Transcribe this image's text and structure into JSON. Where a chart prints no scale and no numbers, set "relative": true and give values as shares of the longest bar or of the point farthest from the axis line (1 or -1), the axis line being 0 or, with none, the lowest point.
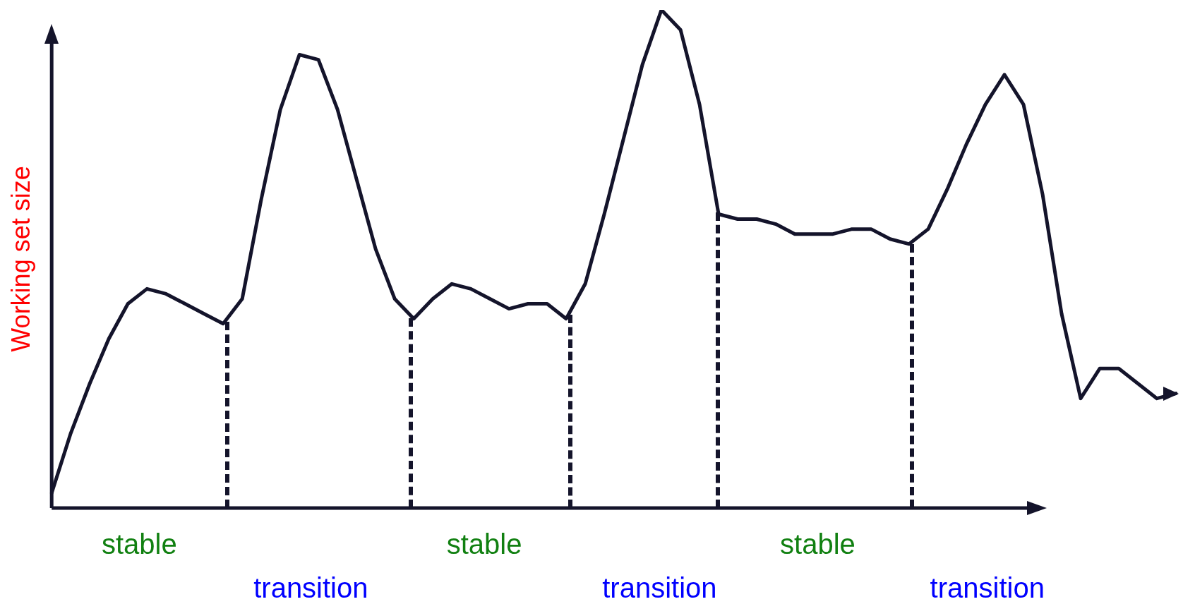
{
  "chart_data": {
    "type": "line",
    "relative": true,
    "ylabel": "Working set size",
    "line_style": "solid",
    "categories": [
      null,
      null,
      null,
      null,
      null,
      null,
      null,
      null,
      null,
      null,
      null,
      null,
      null,
      null,
      null,
      null,
      null,
      null,
      null,
      null,
      null,
      null,
      null,
      null,
      null,
      null,
      null,
      null,
      null,
      null,
      null,
      null,
      null,
      null,
      null,
      null,
      null,
      null,
      null,
      null,
      null,
      null,
      null,
      null,
      null,
      null,
      null,
      null,
      null,
      null,
      null,
      null,
      null,
      null,
      null,
      null,
      null,
      null,
      null,
      null
    ],
    "series": [
      {
        "color": "#14142b",
        "values": [
          0.03,
          0.15,
          0.25,
          0.34,
          0.41,
          0.44,
          0.43,
          0.41,
          0.39,
          0.37,
          0.42,
          0.62,
          0.8,
          0.91,
          0.9,
          0.8,
          0.66,
          0.52,
          0.42,
          0.38,
          0.42,
          0.45,
          0.44,
          0.42,
          0.4,
          0.41,
          0.41,
          0.38,
          0.45,
          0.59,
          0.74,
          0.89,
          1.0,
          0.96,
          0.81,
          0.59,
          0.58,
          0.58,
          0.57,
          0.55,
          0.55,
          0.55,
          0.56,
          0.56,
          0.54,
          0.53,
          0.56,
          0.64,
          0.73,
          0.81,
          0.87,
          0.81,
          0.63,
          0.39,
          0.22,
          0.28,
          0.28,
          0.25,
          0.22,
          0.23
        ]
      }
    ],
    "annotations": [
      "stable",
      "transition",
      "stable",
      "transition",
      "stable",
      "transition"
    ]
  }
}
